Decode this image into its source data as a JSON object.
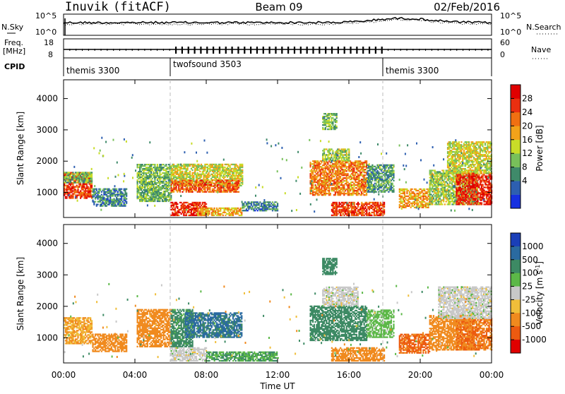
{
  "header": {
    "radar": "Inuvik",
    "mode": "(fitACF)",
    "beam": "Beam 09",
    "date": "02/Feb/2016"
  },
  "top_panel": {
    "nsky_label": "N.Sky",
    "nsearch_label": "N.Search",
    "noise_ticks_left": [
      "10^5",
      "10^0"
    ],
    "noise_ticks_right": [
      "10^5",
      "10^0"
    ],
    "freq_label_1": "Freq.",
    "freq_label_2": "[MHz]",
    "freq_ticks": [
      "18",
      "8"
    ],
    "nave_label": "Nave",
    "nave_ticks": [
      "60",
      "0"
    ],
    "cpid_label": "CPID",
    "cpid_segments": [
      {
        "name": "themis 3300",
        "start": 0,
        "end": 6
      },
      {
        "name": "twofsound 3503",
        "start": 6,
        "end": 18
      },
      {
        "name": "themis 3300",
        "start": 18,
        "end": 24
      }
    ]
  },
  "chart_data": [
    {
      "type": "heatmap",
      "quantity": "Power",
      "xlabel": "Time UT",
      "ylabel": "Slant Range [km]",
      "xlim": [
        0,
        24
      ],
      "ylim": [
        200,
        4600
      ],
      "x_ticks": [
        "00:00",
        "04:00",
        "08:00",
        "12:00",
        "16:00",
        "20:00",
        "00:00"
      ],
      "y_ticks": [
        1000,
        2000,
        3000,
        4000
      ],
      "colorbar": {
        "label": "Power [dB]",
        "ticks": [
          "28",
          "24",
          "20",
          "16",
          "12",
          "8",
          "4"
        ],
        "colors": [
          "#1630e0",
          "#2d5fb0",
          "#3f8a6a",
          "#78c05a",
          "#c8dc28",
          "#f2a21a",
          "#f07012",
          "#ea2f10",
          "#e00000"
        ]
      },
      "regions": [
        {
          "t": [
            0.0,
            1.6
          ],
          "r": [
            800,
            1650
          ],
          "v": 26
        },
        {
          "t": [
            0.0,
            1.6
          ],
          "r": [
            1300,
            1650
          ],
          "v": 12
        },
        {
          "t": [
            1.6,
            3.5
          ],
          "r": [
            550,
            1100
          ],
          "v": 8
        },
        {
          "t": [
            4.1,
            6.0
          ],
          "r": [
            700,
            1900
          ],
          "v": 12
        },
        {
          "t": [
            6.0,
            10.0
          ],
          "r": [
            1200,
            1900
          ],
          "v": 16
        },
        {
          "t": [
            6.0,
            9.8
          ],
          "r": [
            1000,
            1400
          ],
          "v": 24
        },
        {
          "t": [
            6.0,
            8.0
          ],
          "r": [
            250,
            700
          ],
          "v": 28
        },
        {
          "t": [
            7.5,
            10.0
          ],
          "r": [
            250,
            500
          ],
          "v": 20
        },
        {
          "t": [
            10.0,
            12.0
          ],
          "r": [
            400,
            700
          ],
          "v": 8
        },
        {
          "t": [
            13.8,
            17.0
          ],
          "r": [
            900,
            2000
          ],
          "v": 22
        },
        {
          "t": [
            14.5,
            16.0
          ],
          "r": [
            2000,
            2400
          ],
          "v": 14
        },
        {
          "t": [
            14.5,
            15.3
          ],
          "r": [
            3000,
            3500
          ],
          "v": 12
        },
        {
          "t": [
            15.0,
            18.0
          ],
          "r": [
            250,
            700
          ],
          "v": 26
        },
        {
          "t": [
            17.0,
            18.5
          ],
          "r": [
            1000,
            1900
          ],
          "v": 10
        },
        {
          "t": [
            18.8,
            20.5
          ],
          "r": [
            500,
            1100
          ],
          "v": 20
        },
        {
          "t": [
            20.5,
            23.2
          ],
          "r": [
            600,
            1700
          ],
          "v": 14
        },
        {
          "t": [
            22.0,
            24.0
          ],
          "r": [
            600,
            1600
          ],
          "v": 28
        },
        {
          "t": [
            21.5,
            24.0
          ],
          "r": [
            1600,
            2600
          ],
          "v": 16
        }
      ]
    },
    {
      "type": "heatmap",
      "quantity": "Velocity",
      "xlabel": "Time UT",
      "ylabel": "Slant Range [km]",
      "xlim": [
        0,
        24
      ],
      "ylim": [
        200,
        4600
      ],
      "x_ticks": [
        "00:00",
        "04:00",
        "08:00",
        "12:00",
        "16:00",
        "20:00",
        "00:00"
      ],
      "y_ticks": [
        1000,
        2000,
        3000,
        4000
      ],
      "colorbar": {
        "label": "Velocity [m s^-1]",
        "ticks": [
          "1000",
          "500",
          "100",
          "25",
          "-25",
          "-100",
          "-500",
          "-1000"
        ],
        "colors": [
          "#1a3fb8",
          "#2a6aa0",
          "#3d8a64",
          "#5cb848",
          "#c8c8c8",
          "#f0be3a",
          "#f08a1e",
          "#ec5a10",
          "#e00000"
        ]
      },
      "regions": [
        {
          "t": [
            0.0,
            1.6
          ],
          "r": [
            800,
            1650
          ],
          "v": -100
        },
        {
          "t": [
            1.6,
            3.5
          ],
          "r": [
            550,
            1100
          ],
          "v": -300
        },
        {
          "t": [
            4.1,
            6.0
          ],
          "r": [
            700,
            1900
          ],
          "v": -200
        },
        {
          "t": [
            6.0,
            7.2
          ],
          "r": [
            700,
            1900
          ],
          "v": 150
        },
        {
          "t": [
            6.8,
            10.0
          ],
          "r": [
            1000,
            1800
          ],
          "v": 600
        },
        {
          "t": [
            6.0,
            8.0
          ],
          "r": [
            250,
            700
          ],
          "v": 0
        },
        {
          "t": [
            8.0,
            12.0
          ],
          "r": [
            250,
            550
          ],
          "v": 100
        },
        {
          "t": [
            13.8,
            17.0
          ],
          "r": [
            900,
            2000
          ],
          "v": 300
        },
        {
          "t": [
            14.5,
            16.5
          ],
          "r": [
            2000,
            2600
          ],
          "v": 0
        },
        {
          "t": [
            14.5,
            15.3
          ],
          "r": [
            3000,
            3500
          ],
          "v": 300
        },
        {
          "t": [
            15.0,
            18.0
          ],
          "r": [
            250,
            700
          ],
          "v": -300
        },
        {
          "t": [
            17.0,
            18.5
          ],
          "r": [
            1000,
            1900
          ],
          "v": 50
        },
        {
          "t": [
            18.8,
            20.5
          ],
          "r": [
            500,
            1100
          ],
          "v": -600
        },
        {
          "t": [
            20.5,
            23.0
          ],
          "r": [
            600,
            1700
          ],
          "v": -300
        },
        {
          "t": [
            22.0,
            24.0
          ],
          "r": [
            600,
            1600
          ],
          "v": -500
        },
        {
          "t": [
            21.0,
            24.0
          ],
          "r": [
            1600,
            2600
          ],
          "v": 0
        }
      ]
    }
  ]
}
